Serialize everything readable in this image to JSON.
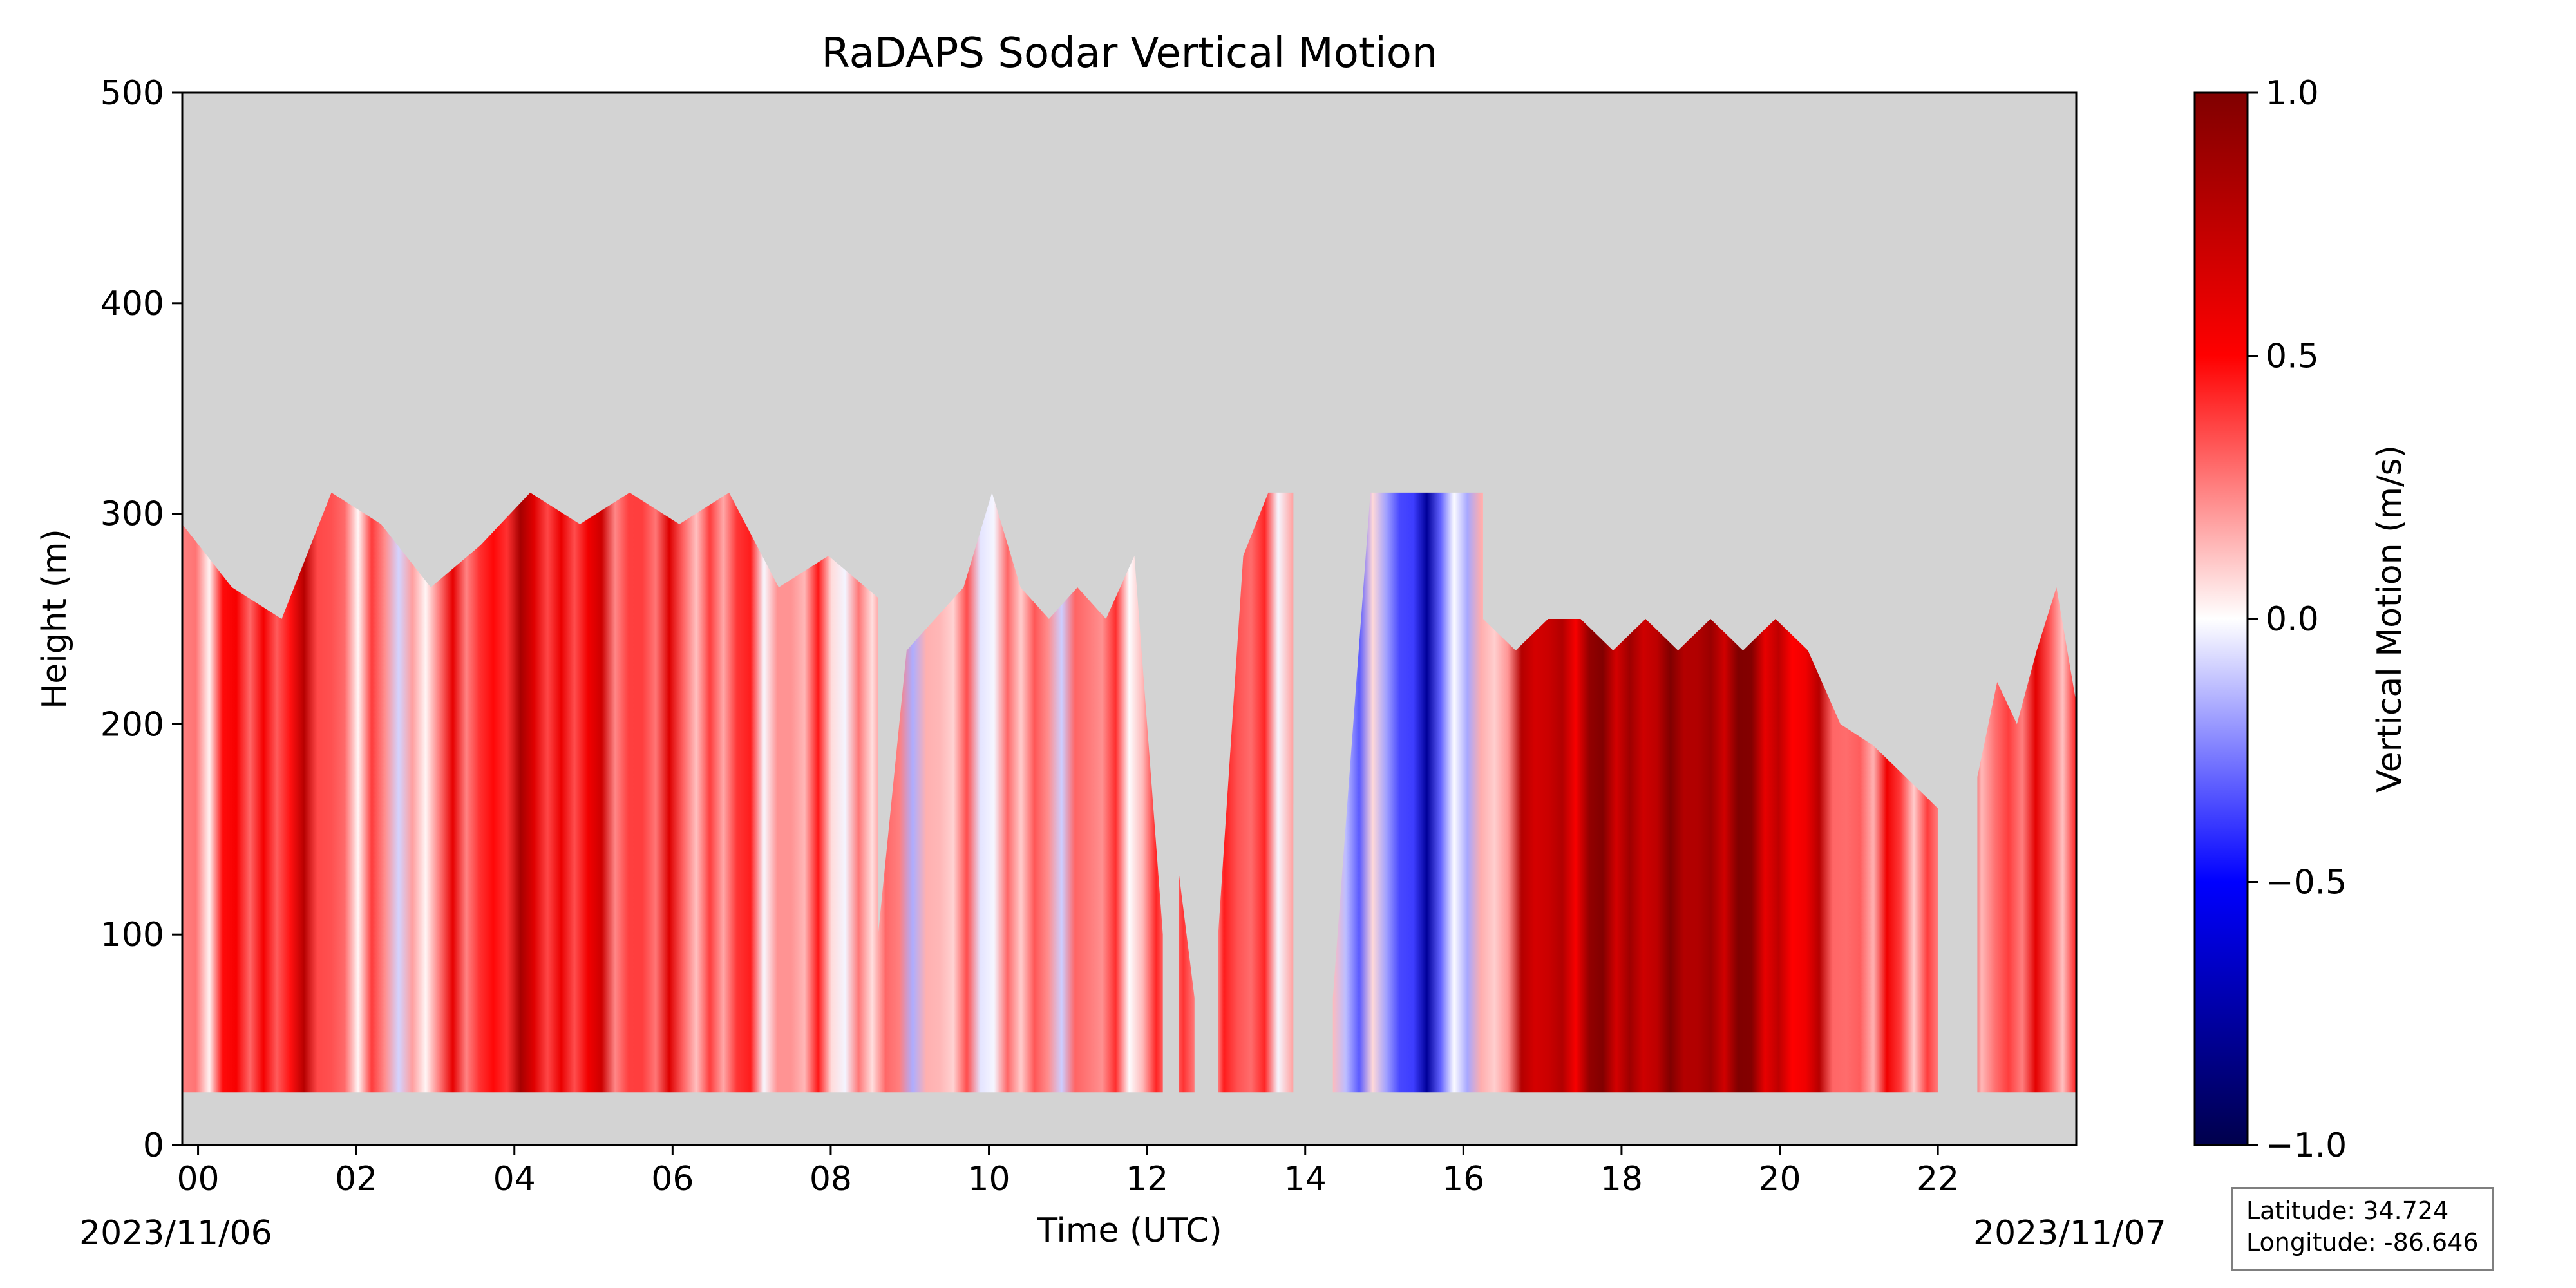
{
  "chart_data": {
    "type": "heatmap",
    "title": "RaDAPS Sodar Vertical Motion",
    "xlabel": "Time (UTC)",
    "ylabel": "Height (m)",
    "xlim_hours": [
      -0.2,
      23.75
    ],
    "ylim": [
      0,
      500
    ],
    "x_ticks": [
      "00",
      "02",
      "04",
      "06",
      "08",
      "10",
      "12",
      "14",
      "16",
      "18",
      "20",
      "22"
    ],
    "x_tick_values": [
      0,
      2,
      4,
      6,
      8,
      10,
      12,
      14,
      16,
      18,
      20,
      22
    ],
    "y_ticks": [
      "0",
      "100",
      "200",
      "300",
      "400",
      "500"
    ],
    "y_tick_values": [
      0,
      100,
      200,
      300,
      400,
      500
    ],
    "start_date": "2023/11/06",
    "end_date": "2023/11/07",
    "background_color": "#d3d3d3",
    "colorbar": {
      "label": "Vertical Motion (m/s)",
      "range": [
        -1.0,
        1.0
      ],
      "ticks": [
        "1.0",
        "0.5",
        "0.0",
        "−0.5",
        "−1.0"
      ],
      "tick_values": [
        1.0,
        0.5,
        0.0,
        -0.5,
        -1.0
      ],
      "colormap": "seismic",
      "colors": [
        "#00004c",
        "#0000ff",
        "#ffffff",
        "#ff0000",
        "#800000"
      ]
    },
    "min_height": 25,
    "segments": [
      {
        "start": -0.2,
        "end": 8.6,
        "top_heights": [
          295,
          265,
          250,
          310,
          295,
          265,
          285,
          310,
          295,
          310,
          295,
          310,
          265,
          280,
          260
        ]
      },
      {
        "start": 8.6,
        "end": 12.2,
        "top_heights": [
          100,
          235,
          250,
          265,
          310,
          265,
          250,
          265,
          250,
          280,
          100
        ]
      },
      {
        "start": 12.4,
        "end": 12.6,
        "top_heights": [
          130,
          70
        ]
      },
      {
        "start": 12.9,
        "end": 13.85,
        "top_heights": [
          100,
          280,
          310,
          310
        ]
      },
      {
        "start": 14.35,
        "end": 16.25,
        "top_heights": [
          70,
          310,
          310,
          310,
          310
        ]
      },
      {
        "start": 16.25,
        "end": 22.0,
        "top_heights": [
          250,
          235,
          250,
          250,
          235,
          250,
          235,
          250,
          235,
          250,
          235,
          200,
          190,
          175,
          160
        ]
      },
      {
        "start": 22.5,
        "end": 23.75,
        "top_heights": [
          175,
          220,
          200,
          235,
          265,
          210
        ]
      }
    ],
    "motion_profile": [
      {
        "time": 0.0,
        "value": 0.25
      },
      {
        "time": 1.2,
        "value": 0.55
      },
      {
        "time": 2.5,
        "value": 0.05
      },
      {
        "time": 4.0,
        "value": 0.6
      },
      {
        "time": 5.5,
        "value": 0.4
      },
      {
        "time": 7.5,
        "value": 0.2
      },
      {
        "time": 9.5,
        "value": 0.1
      },
      {
        "time": 11.0,
        "value": 0.2
      },
      {
        "time": 13.5,
        "value": 0.3
      },
      {
        "time": 15.0,
        "value": -0.2
      },
      {
        "time": 15.5,
        "value": -0.55
      },
      {
        "time": 17.0,
        "value": 0.75
      },
      {
        "time": 18.5,
        "value": 0.85
      },
      {
        "time": 19.5,
        "value": 0.9
      },
      {
        "time": 21.0,
        "value": 0.3
      },
      {
        "time": 23.0,
        "value": 0.35
      }
    ]
  },
  "location": {
    "latitude_label": "Latitude: 34.724",
    "longitude_label": "Longitude: -86.646"
  }
}
